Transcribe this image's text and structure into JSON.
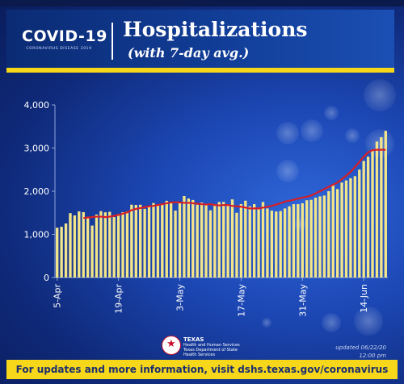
{
  "brand": {
    "logo_main": "COVID-19",
    "logo_sub": "CORONAVIRUS DISEASE 2019",
    "agency_line1": "TEXAS",
    "agency_line2": "Health and Human Services",
    "agency_line3": "Texas Department of State Health Services"
  },
  "header": {
    "title": "Hospitalizations",
    "subtitle": "(with 7-day avg.)"
  },
  "updated": {
    "line1": "updated 06/22/20",
    "line2": "12:00 pm"
  },
  "footer": {
    "text": "For updates and more information, visit dshs.texas.gov/coronavirus"
  },
  "colors": {
    "bar": "#f3e58a",
    "avg_line": "#d61f26",
    "accent": "#f7d71a",
    "axis_text": "#ffffff"
  },
  "chart_data": {
    "type": "bar",
    "title": "Hospitalizations",
    "subtitle": "(with 7-day avg.)",
    "x_tick_labels": [
      "5-Apr",
      "19-Apr",
      "3-May",
      "17-May",
      "31-May",
      "14-Jun"
    ],
    "x_tick_indices": [
      0,
      14,
      28,
      42,
      56,
      70
    ],
    "ylim": [
      0,
      4000
    ],
    "y_ticks": [
      0,
      1000,
      2000,
      3000,
      4000
    ],
    "y_tick_labels": [
      "0",
      "1,000",
      "2,000",
      "3,000",
      "4,000"
    ],
    "grid": false,
    "series": [
      {
        "kind": "bar",
        "values": [
          1153,
          1176,
          1252,
          1491,
          1439,
          1532,
          1514,
          1409,
          1204,
          1459,
          1538,
          1511,
          1522,
          1400,
          1471,
          1514,
          1533,
          1687,
          1682,
          1686,
          1591,
          1646,
          1726,
          1678,
          1716,
          1778,
          1725,
          1551,
          1721,
          1888,
          1830,
          1796,
          1687,
          1737,
          1677,
          1557,
          1700,
          1750,
          1750,
          1700,
          1810,
          1500,
          1700,
          1780,
          1650,
          1700,
          1620,
          1750,
          1600,
          1550,
          1530,
          1540,
          1600,
          1650,
          1700,
          1700,
          1720,
          1790,
          1800,
          1850,
          1880,
          1900,
          2000,
          2150,
          2050,
          2200,
          2250,
          2300,
          2350,
          2500,
          2700,
          2800,
          2950,
          3150,
          3250,
          3400
        ]
      },
      {
        "kind": "line",
        "name": "7-day avg.",
        "start_index": 6,
        "values": [
          1380,
          1390,
          1400,
          1410,
          1410,
          1400,
          1410,
          1430,
          1450,
          1480,
          1510,
          1560,
          1590,
          1610,
          1630,
          1650,
          1660,
          1680,
          1700,
          1720,
          1740,
          1740,
          1740,
          1730,
          1730,
          1720,
          1710,
          1700,
          1690,
          1700,
          1680,
          1670,
          1680,
          1680,
          1660,
          1650,
          1640,
          1620,
          1600,
          1600,
          1600,
          1620,
          1640,
          1660,
          1690,
          1720,
          1760,
          1780,
          1800,
          1830,
          1850,
          1870,
          1900,
          1950,
          2000,
          2050,
          2100,
          2150,
          2200,
          2280,
          2360,
          2450,
          2560,
          2680,
          2800,
          2900,
          2950,
          2960,
          2960,
          2960
        ]
      }
    ]
  }
}
